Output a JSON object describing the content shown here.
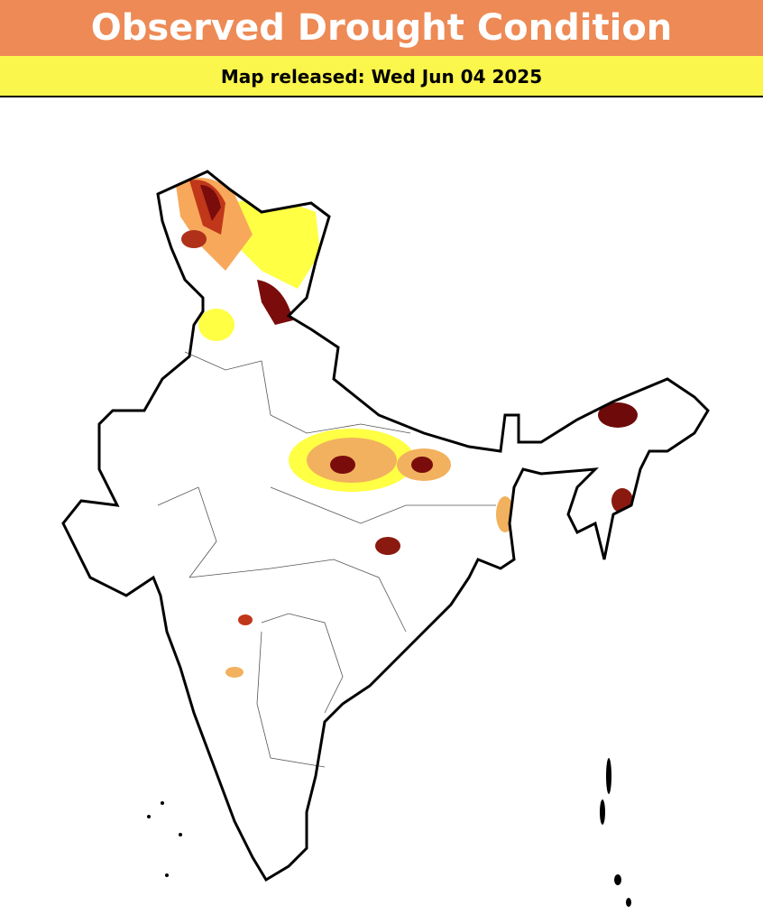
{
  "header": {
    "title": "Observed Drought Condition",
    "subtitle": "Map released: Wed Jun 04 2025"
  }
}
